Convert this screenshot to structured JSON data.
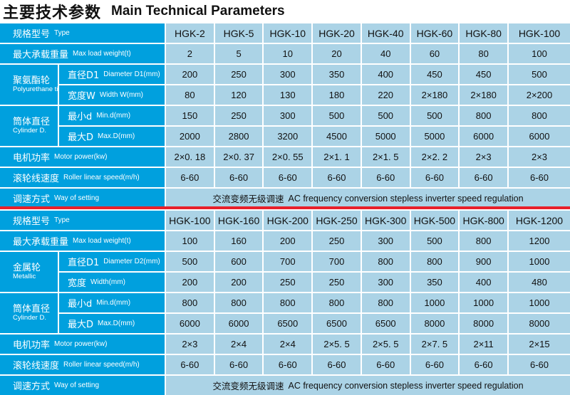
{
  "title": {
    "cn": "主要技术参数",
    "en": "Main Technical Parameters"
  },
  "colors": {
    "label_bg": "#00a0de",
    "cell_bg": "#abd3e6",
    "divider": "#e8202a"
  },
  "table1": {
    "type": {
      "cn": "规格型号",
      "en": "Type",
      "values": [
        "HGK-2",
        "HGK-5",
        "HGK-10",
        "HGK-20",
        "HGK-40",
        "HGK-60",
        "HGK-80",
        "HGK-100"
      ]
    },
    "load": {
      "cn": "最大承载重量",
      "en": "Max load weight(t)",
      "values": [
        "2",
        "5",
        "10",
        "20",
        "40",
        "60",
        "80",
        "100"
      ]
    },
    "wheel_group": {
      "cn": "聚氨酯轮",
      "en": "Polyurethane tire"
    },
    "diameter": {
      "cn": "直径D1",
      "en": "Diameter D1(mm)",
      "values": [
        "200",
        "250",
        "300",
        "350",
        "400",
        "450",
        "450",
        "500"
      ]
    },
    "width": {
      "cn": "宽度W",
      "en": "Width W(mm)",
      "values": [
        "80",
        "120",
        "130",
        "180",
        "220",
        "2×180",
        "2×180",
        "2×200"
      ]
    },
    "cyl_group": {
      "cn": "筒体直径",
      "en": "Cylinder D."
    },
    "min": {
      "cn": "最小d",
      "en": "Min.d(mm)",
      "values": [
        "150",
        "250",
        "300",
        "500",
        "500",
        "500",
        "800",
        "800"
      ]
    },
    "max": {
      "cn": "最大D",
      "en": "Max.D(mm)",
      "values": [
        "2000",
        "2800",
        "3200",
        "4500",
        "5000",
        "5000",
        "6000",
        "6000"
      ]
    },
    "motor": {
      "cn": "电机功率",
      "en": "Motor power(kw)",
      "values": [
        "2×0. 18",
        "2×0. 37",
        "2×0. 55",
        "2×1. 1",
        "2×1. 5",
        "2×2. 2",
        "2×3",
        "2×3"
      ]
    },
    "speed": {
      "cn": "滚轮线速度",
      "en": "Roller linear speed(m/h)",
      "values": [
        "6-60",
        "6-60",
        "6-60",
        "6-60",
        "6-60",
        "6-60",
        "6-60",
        "6-60"
      ]
    },
    "setting": {
      "cn": "调速方式",
      "en": "Way of setting",
      "value_cn": "交流变频无级调速",
      "value_en": "AC frequency conversion stepless inverter speed regulation"
    }
  },
  "table2": {
    "type": {
      "cn": "规格型号",
      "en": "Type",
      "values": [
        "HGK-100",
        "HGK-160",
        "HGK-200",
        "HGK-250",
        "HGK-300",
        "HGK-500",
        "HGK-800",
        "HGK-1200"
      ]
    },
    "load": {
      "cn": "最大承载重量",
      "en": "Max load weight(t)",
      "values": [
        "100",
        "160",
        "200",
        "250",
        "300",
        "500",
        "800",
        "1200"
      ]
    },
    "wheel_group": {
      "cn": "金属轮",
      "en": "Metallic"
    },
    "diameter": {
      "cn": "直径D1",
      "en": "Diameter D2(mm)",
      "values": [
        "500",
        "600",
        "700",
        "700",
        "800",
        "800",
        "900",
        "1000"
      ]
    },
    "width": {
      "cn": "宽度",
      "en": "Width(mm)",
      "values": [
        "200",
        "200",
        "250",
        "250",
        "300",
        "350",
        "400",
        "480"
      ]
    },
    "cyl_group": {
      "cn": "筒体直径",
      "en": "Cylinder D."
    },
    "min": {
      "cn": "最小d",
      "en": "Min.d(mm)",
      "values": [
        "800",
        "800",
        "800",
        "800",
        "800",
        "1000",
        "1000",
        "1000"
      ]
    },
    "max": {
      "cn": "最大D",
      "en": "Max.D(mm)",
      "values": [
        "6000",
        "6000",
        "6500",
        "6500",
        "6500",
        "8000",
        "8000",
        "8000"
      ]
    },
    "motor": {
      "cn": "电机功率",
      "en": "Motor power(kw)",
      "values": [
        "2×3",
        "2×4",
        "2×4",
        "2×5. 5",
        "2×5. 5",
        "2×7. 5",
        "2×11",
        "2×15"
      ]
    },
    "speed": {
      "cn": "滚轮线速度",
      "en": "Roller linear speed(m/h)",
      "values": [
        "6-60",
        "6-60",
        "6-60",
        "6-60",
        "6-60",
        "6-60",
        "6-60",
        "6-60"
      ]
    },
    "setting": {
      "cn": "调速方式",
      "en": "Way of setting",
      "value_cn": "交流变频无级调速",
      "value_en": "AC frequency conversion stepless inverter speed regulation"
    }
  }
}
